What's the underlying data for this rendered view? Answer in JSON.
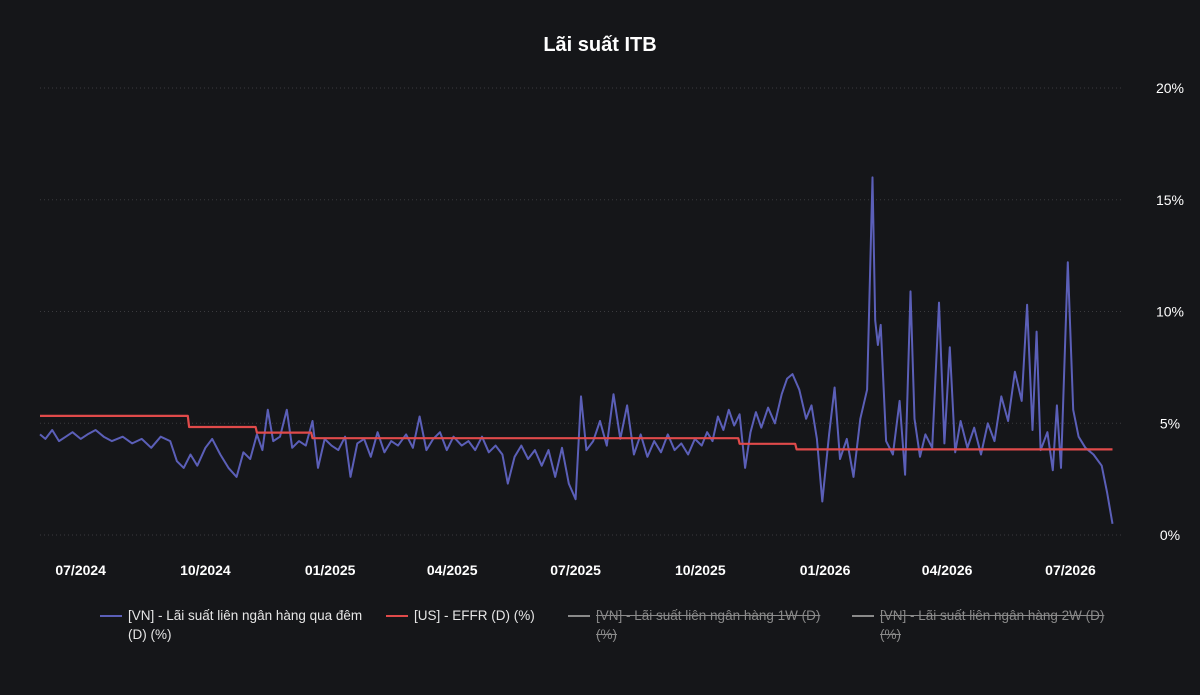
{
  "colors": {
    "background": "#151619",
    "grid": "#3a3a3e",
    "text": "#ffffff",
    "vn_overnight": "#5b5fb8",
    "us_effr": "#e04a4a",
    "hidden_series": "#8a8a8a"
  },
  "chart_data": {
    "type": "line",
    "title": "Lãi suất ITB",
    "xlabel": "",
    "ylabel": "",
    "x_range": [
      "2024-06-01",
      "2026-08-08"
    ],
    "ylim": [
      0,
      20
    ],
    "yaxis_position": "right",
    "y_ticks": [
      {
        "value": 0,
        "label": "0%"
      },
      {
        "value": 5,
        "label": "5%"
      },
      {
        "value": 10,
        "label": "10%"
      },
      {
        "value": 15,
        "label": "15%"
      },
      {
        "value": 20,
        "label": "20%"
      }
    ],
    "x_ticks": [
      {
        "date": "2024-07-01",
        "label": "07/2024"
      },
      {
        "date": "2024-10-01",
        "label": "10/2024"
      },
      {
        "date": "2025-01-01",
        "label": "01/2025"
      },
      {
        "date": "2025-04-01",
        "label": "04/2025"
      },
      {
        "date": "2025-07-01",
        "label": "07/2025"
      },
      {
        "date": "2025-10-01",
        "label": "10/2025"
      },
      {
        "date": "2026-01-01",
        "label": "01/2026"
      },
      {
        "date": "2026-04-01",
        "label": "04/2026"
      },
      {
        "date": "2026-07-01",
        "label": "07/2026"
      }
    ],
    "grid": "horizontal-dotted",
    "legend_position": "bottom",
    "series": [
      {
        "name": "[VN] - Lãi suất liên ngân hàng qua đêm (D) (%)",
        "style": "visible",
        "points": [
          [
            "2024-06-01",
            4.5
          ],
          [
            "2024-06-05",
            4.3
          ],
          [
            "2024-06-10",
            4.7
          ],
          [
            "2024-06-15",
            4.2
          ],
          [
            "2024-06-20",
            4.4
          ],
          [
            "2024-06-25",
            4.6
          ],
          [
            "2024-07-01",
            4.3
          ],
          [
            "2024-07-06",
            4.5
          ],
          [
            "2024-07-12",
            4.7
          ],
          [
            "2024-07-18",
            4.4
          ],
          [
            "2024-07-24",
            4.2
          ],
          [
            "2024-08-01",
            4.4
          ],
          [
            "2024-08-08",
            4.1
          ],
          [
            "2024-08-15",
            4.3
          ],
          [
            "2024-08-22",
            3.9
          ],
          [
            "2024-08-29",
            4.4
          ],
          [
            "2024-09-05",
            4.2
          ],
          [
            "2024-09-10",
            3.3
          ],
          [
            "2024-09-15",
            3.0
          ],
          [
            "2024-09-20",
            3.6
          ],
          [
            "2024-09-25",
            3.1
          ],
          [
            "2024-10-01",
            3.9
          ],
          [
            "2024-10-06",
            4.3
          ],
          [
            "2024-10-12",
            3.6
          ],
          [
            "2024-10-18",
            3.0
          ],
          [
            "2024-10-24",
            2.6
          ],
          [
            "2024-10-29",
            3.7
          ],
          [
            "2024-11-03",
            3.4
          ],
          [
            "2024-11-08",
            4.5
          ],
          [
            "2024-11-12",
            3.8
          ],
          [
            "2024-11-16",
            5.6
          ],
          [
            "2024-11-20",
            4.2
          ],
          [
            "2024-11-25",
            4.4
          ],
          [
            "2024-11-30",
            5.6
          ],
          [
            "2024-12-04",
            3.9
          ],
          [
            "2024-12-09",
            4.2
          ],
          [
            "2024-12-14",
            4.0
          ],
          [
            "2024-12-19",
            5.1
          ],
          [
            "2024-12-23",
            3.0
          ],
          [
            "2024-12-28",
            4.3
          ],
          [
            "2025-01-02",
            4.0
          ],
          [
            "2025-01-07",
            3.8
          ],
          [
            "2025-01-12",
            4.4
          ],
          [
            "2025-01-16",
            2.6
          ],
          [
            "2025-01-21",
            4.1
          ],
          [
            "2025-01-26",
            4.3
          ],
          [
            "2025-01-31",
            3.5
          ],
          [
            "2025-02-05",
            4.6
          ],
          [
            "2025-02-10",
            3.7
          ],
          [
            "2025-02-15",
            4.2
          ],
          [
            "2025-02-20",
            4.0
          ],
          [
            "2025-02-26",
            4.5
          ],
          [
            "2025-03-03",
            3.9
          ],
          [
            "2025-03-08",
            5.3
          ],
          [
            "2025-03-13",
            3.8
          ],
          [
            "2025-03-18",
            4.3
          ],
          [
            "2025-03-23",
            4.6
          ],
          [
            "2025-03-28",
            3.8
          ],
          [
            "2025-04-02",
            4.4
          ],
          [
            "2025-04-08",
            4.0
          ],
          [
            "2025-04-13",
            4.2
          ],
          [
            "2025-04-18",
            3.8
          ],
          [
            "2025-04-23",
            4.4
          ],
          [
            "2025-04-28",
            3.7
          ],
          [
            "2025-05-03",
            4.0
          ],
          [
            "2025-05-08",
            3.6
          ],
          [
            "2025-05-12",
            2.3
          ],
          [
            "2025-05-17",
            3.5
          ],
          [
            "2025-05-22",
            4.0
          ],
          [
            "2025-05-27",
            3.4
          ],
          [
            "2025-06-01",
            3.8
          ],
          [
            "2025-06-06",
            3.1
          ],
          [
            "2025-06-11",
            3.8
          ],
          [
            "2025-06-16",
            2.6
          ],
          [
            "2025-06-21",
            3.9
          ],
          [
            "2025-06-26",
            2.3
          ],
          [
            "2025-07-01",
            1.6
          ],
          [
            "2025-07-05",
            6.2
          ],
          [
            "2025-07-09",
            3.8
          ],
          [
            "2025-07-14",
            4.2
          ],
          [
            "2025-07-19",
            5.1
          ],
          [
            "2025-07-24",
            4.0
          ],
          [
            "2025-07-29",
            6.3
          ],
          [
            "2025-08-03",
            4.3
          ],
          [
            "2025-08-08",
            5.8
          ],
          [
            "2025-08-13",
            3.6
          ],
          [
            "2025-08-18",
            4.5
          ],
          [
            "2025-08-23",
            3.5
          ],
          [
            "2025-08-28",
            4.2
          ],
          [
            "2025-09-02",
            3.7
          ],
          [
            "2025-09-07",
            4.5
          ],
          [
            "2025-09-12",
            3.8
          ],
          [
            "2025-09-17",
            4.1
          ],
          [
            "2025-09-22",
            3.6
          ],
          [
            "2025-09-27",
            4.3
          ],
          [
            "2025-10-02",
            4.0
          ],
          [
            "2025-10-06",
            4.6
          ],
          [
            "2025-10-10",
            4.2
          ],
          [
            "2025-10-14",
            5.3
          ],
          [
            "2025-10-18",
            4.7
          ],
          [
            "2025-10-22",
            5.6
          ],
          [
            "2025-10-26",
            4.9
          ],
          [
            "2025-10-30",
            5.4
          ],
          [
            "2025-11-03",
            3.0
          ],
          [
            "2025-11-07",
            4.6
          ],
          [
            "2025-11-11",
            5.5
          ],
          [
            "2025-11-15",
            4.8
          ],
          [
            "2025-11-20",
            5.7
          ],
          [
            "2025-11-25",
            5.0
          ],
          [
            "2025-11-30",
            6.3
          ],
          [
            "2025-12-04",
            7.0
          ],
          [
            "2025-12-08",
            7.2
          ],
          [
            "2025-12-13",
            6.5
          ],
          [
            "2025-12-18",
            5.2
          ],
          [
            "2025-12-22",
            5.8
          ],
          [
            "2025-12-26",
            4.3
          ],
          [
            "2025-12-30",
            1.5
          ],
          [
            "2026-01-04",
            4.5
          ],
          [
            "2026-01-08",
            6.6
          ],
          [
            "2026-01-12",
            3.4
          ],
          [
            "2026-01-17",
            4.3
          ],
          [
            "2026-01-22",
            2.6
          ],
          [
            "2026-01-27",
            5.2
          ],
          [
            "2026-02-01",
            6.5
          ],
          [
            "2026-02-05",
            16.0
          ],
          [
            "2026-02-07",
            9.6
          ],
          [
            "2026-02-09",
            8.5
          ],
          [
            "2026-02-11",
            9.4
          ],
          [
            "2026-02-15",
            4.2
          ],
          [
            "2026-02-20",
            3.6
          ],
          [
            "2026-02-25",
            6.0
          ],
          [
            "2026-03-01",
            2.7
          ],
          [
            "2026-03-05",
            10.9
          ],
          [
            "2026-03-08",
            5.2
          ],
          [
            "2026-03-12",
            3.5
          ],
          [
            "2026-03-16",
            4.5
          ],
          [
            "2026-03-21",
            3.9
          ],
          [
            "2026-03-26",
            10.4
          ],
          [
            "2026-03-30",
            4.1
          ],
          [
            "2026-04-03",
            8.4
          ],
          [
            "2026-04-07",
            3.7
          ],
          [
            "2026-04-11",
            5.1
          ],
          [
            "2026-04-16",
            3.9
          ],
          [
            "2026-04-21",
            4.8
          ],
          [
            "2026-04-26",
            3.6
          ],
          [
            "2026-05-01",
            5.0
          ],
          [
            "2026-05-06",
            4.2
          ],
          [
            "2026-05-11",
            6.2
          ],
          [
            "2026-05-16",
            5.1
          ],
          [
            "2026-05-21",
            7.3
          ],
          [
            "2026-05-26",
            6.0
          ],
          [
            "2026-05-30",
            10.3
          ],
          [
            "2026-06-03",
            4.7
          ],
          [
            "2026-06-06",
            9.1
          ],
          [
            "2026-06-09",
            3.8
          ],
          [
            "2026-06-14",
            4.6
          ],
          [
            "2026-06-18",
            2.9
          ],
          [
            "2026-06-21",
            5.8
          ],
          [
            "2026-06-24",
            3.0
          ],
          [
            "2026-06-29",
            12.2
          ],
          [
            "2026-07-03",
            5.6
          ],
          [
            "2026-07-07",
            4.4
          ],
          [
            "2026-07-12",
            3.9
          ],
          [
            "2026-07-18",
            3.6
          ],
          [
            "2026-07-24",
            3.1
          ],
          [
            "2026-07-28",
            1.9
          ],
          [
            "2026-08-01",
            0.5
          ]
        ]
      },
      {
        "name": "[US] - EFFR (D) (%)",
        "style": "visible",
        "points": [
          [
            "2024-06-01",
            5.33
          ],
          [
            "2024-09-18",
            5.33
          ],
          [
            "2024-09-19",
            4.83
          ],
          [
            "2024-11-07",
            4.83
          ],
          [
            "2024-11-08",
            4.58
          ],
          [
            "2024-12-18",
            4.58
          ],
          [
            "2024-12-19",
            4.33
          ],
          [
            "2025-10-29",
            4.33
          ],
          [
            "2025-10-30",
            4.08
          ],
          [
            "2025-12-10",
            4.08
          ],
          [
            "2025-12-11",
            3.83
          ],
          [
            "2026-08-01",
            3.83
          ]
        ]
      },
      {
        "name": "[VN] - Lãi suất liên ngân hàng 1W (D) (%)",
        "style": "hidden",
        "points": []
      },
      {
        "name": "[VN] - Lãi suất liên ngân hàng 2W (D) (%)",
        "style": "hidden",
        "points": []
      }
    ]
  }
}
